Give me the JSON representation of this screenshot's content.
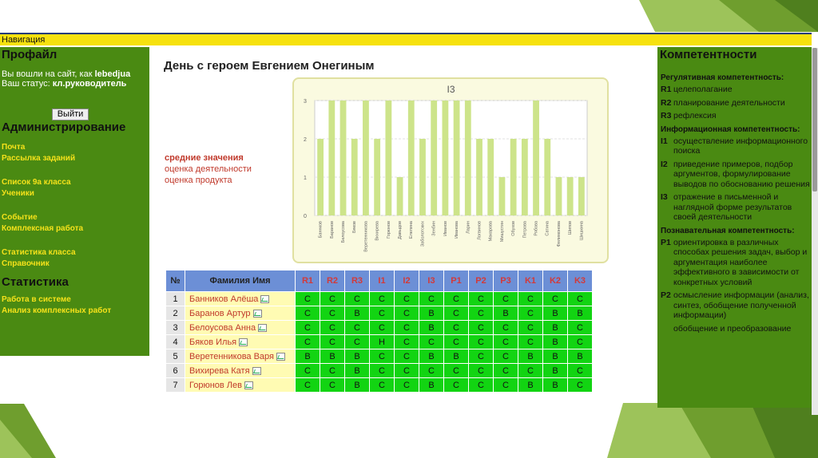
{
  "navigation_label": "Навигация",
  "profile": {
    "title": "Профайл",
    "logged_in_prefix": "Вы вошли на сайт, как",
    "username": "lebedjua",
    "status_prefix": "Ваш статус:",
    "status": "кл.руководитель",
    "logout_label": "Выйти"
  },
  "admin": {
    "title": "Администрирование",
    "links": [
      "Почта",
      "Рассылка заданий",
      "Список 9а класса",
      "Ученики",
      "Событие",
      "Комплексная работа",
      "Статистика класса",
      "Справочник"
    ]
  },
  "stats": {
    "title": "Статистика",
    "links": [
      "Работа в системе",
      "Анализ комплексных работ"
    ]
  },
  "page_title": "День с героем Евгением Онегиным",
  "side_links": [
    "средние значения",
    "оценка деятельности",
    "оценка продукта"
  ],
  "chart_data": {
    "type": "bar",
    "title": "I3",
    "ylim": [
      0,
      3
    ],
    "yticks": [
      "0",
      "1",
      "2",
      "3"
    ],
    "grid": true,
    "categories": [
      "Баннков",
      "Баранов",
      "Белоусова",
      "Бяков",
      "Веретенникова",
      "Вихирева",
      "Горюнов",
      "Давыдов",
      "Елепина",
      "Заболотских",
      "Зенбин",
      "Иванов",
      "Иванова",
      "Ларин",
      "Логвинов",
      "Макарова",
      "Мишустин",
      "Обухов",
      "Петрова",
      "Рябова",
      "Сатина",
      "Филимонова",
      "Шипов",
      "Шишкина"
    ],
    "values": [
      2,
      3,
      3,
      2,
      3,
      2,
      3,
      1,
      3,
      2,
      3,
      3,
      3,
      3,
      2,
      2,
      1,
      2,
      2,
      3,
      2,
      1,
      1,
      1
    ],
    "color": "#cde48a"
  },
  "table": {
    "headers": [
      "№",
      "Фамилия Имя",
      "R1",
      "R2",
      "R3",
      "I1",
      "I2",
      "I3",
      "P1",
      "P2",
      "P3",
      "K1",
      "K2",
      "K3"
    ],
    "rows": [
      {
        "num": "1",
        "name": "Банников Алёша",
        "grades": [
          "C",
          "C",
          "C",
          "C",
          "C",
          "C",
          "C",
          "C",
          "C",
          "C",
          "C",
          "C"
        ]
      },
      {
        "num": "2",
        "name": "Баранов Артур",
        "grades": [
          "C",
          "C",
          "B",
          "C",
          "C",
          "B",
          "C",
          "C",
          "B",
          "C",
          "B",
          "B"
        ]
      },
      {
        "num": "3",
        "name": "Белоусова Анна",
        "grades": [
          "C",
          "C",
          "C",
          "C",
          "C",
          "B",
          "C",
          "C",
          "C",
          "C",
          "B",
          "C"
        ]
      },
      {
        "num": "4",
        "name": "Бяков Илья",
        "grades": [
          "C",
          "C",
          "C",
          "H",
          "C",
          "C",
          "C",
          "C",
          "C",
          "C",
          "B",
          "C"
        ]
      },
      {
        "num": "5",
        "name": "Веретенникова Варя",
        "grades": [
          "B",
          "B",
          "B",
          "C",
          "C",
          "B",
          "B",
          "C",
          "C",
          "B",
          "B",
          "B"
        ]
      },
      {
        "num": "6",
        "name": "Вихирева Катя",
        "grades": [
          "C",
          "C",
          "B",
          "C",
          "C",
          "C",
          "C",
          "C",
          "C",
          "C",
          "B",
          "C"
        ]
      },
      {
        "num": "7",
        "name": "Горюнов Лев",
        "grades": [
          "C",
          "C",
          "B",
          "C",
          "C",
          "B",
          "C",
          "C",
          "C",
          "B",
          "B",
          "C"
        ]
      }
    ]
  },
  "competencies": {
    "title": "Компетентности",
    "groups": [
      {
        "heading": "Регулятивная компетентность:",
        "items": [
          {
            "code": "R1",
            "text": "целеполагание"
          },
          {
            "code": "R2",
            "text": "планирование деятельности"
          },
          {
            "code": "R3",
            "text": "рефлексия"
          }
        ]
      },
      {
        "heading": "Информационная компетентность:",
        "items": [
          {
            "code": "I1",
            "text": "осуществление информационного поиска"
          },
          {
            "code": "I2",
            "text": "приведение примеров, подбор аргументов, формулирование выводов по обоснованию решения"
          },
          {
            "code": "I3",
            "text": "отражение в письменной и наглядной форме результатов своей деятельности"
          }
        ]
      },
      {
        "heading": "Познавательная компетентность:",
        "items": [
          {
            "code": "P1",
            "text": "ориентировка в различных способах решения задач, выбор и аргументация наиболее эффективного в зависимости от конкретных условий"
          },
          {
            "code": "P2",
            "text": "осмысление информации (анализ, синтез, обобщение полученной информации)"
          },
          {
            "code": "",
            "text": "обобщение и преобразование"
          }
        ]
      }
    ]
  }
}
